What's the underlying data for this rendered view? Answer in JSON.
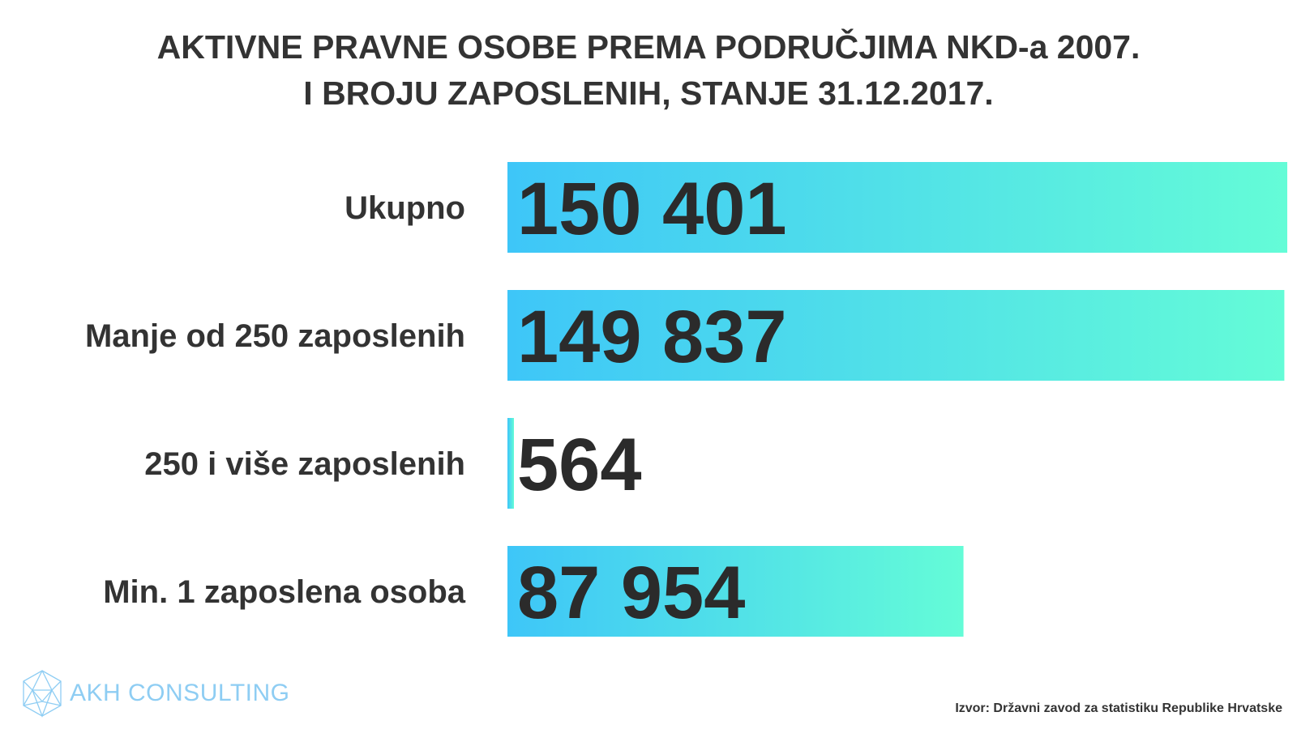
{
  "title_lines": [
    "AKTIVNE PRAVNE OSOBE PREMA PODRUČJIMA NKD-a 2007.",
    "I BROJU ZAPOSLENIH, STANJE 31.12.2017."
  ],
  "chart_data": {
    "type": "bar",
    "orientation": "horizontal",
    "title": "AKTIVNE PRAVNE OSOBE PREMA PODRUČJIMA NKD-a 2007. I BROJU ZAPOSLENIH, STANJE 31.12.2017.",
    "categories": [
      "Ukupno",
      "Manje od 250 zaposlenih",
      "250 i više zaposlenih",
      "Min. 1 zaposlena osoba"
    ],
    "values": [
      150401,
      149837,
      564,
      87954
    ],
    "value_labels": [
      "150 401",
      "149 837",
      "564",
      "87 954"
    ],
    "xlabel": "",
    "ylabel": "",
    "grid": false,
    "legend": "none"
  },
  "colors": {
    "bar_gradient_start": "#3ec6f8",
    "bar_gradient_end": "#64fcd7",
    "text": "#333333",
    "logo": "#8ecdf3"
  },
  "logo": {
    "text": "AKH CONSULTING",
    "icon": "polyhedron-logo-icon"
  },
  "source": "Izvor: Državni zavod za statistiku Republike Hrvatske"
}
